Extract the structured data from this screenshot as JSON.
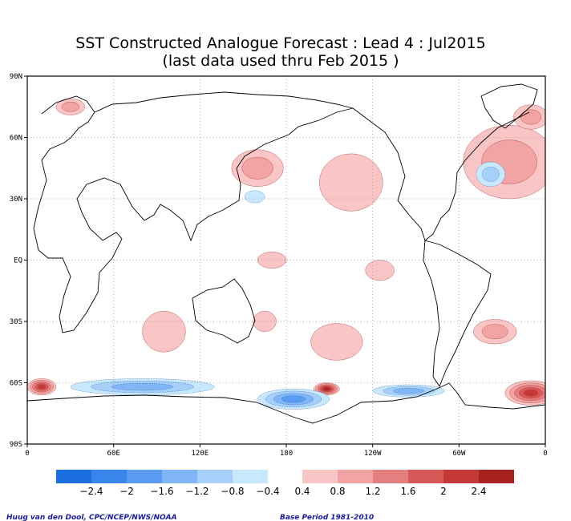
{
  "chart_data": {
    "type": "heatmap",
    "title": "SST Constructed Analogue Forecast : Lead 4 : Jul2015",
    "subtitle": "(last data used thru Feb 2015 )",
    "x_ticks": [
      "0",
      "60E",
      "120E",
      "180",
      "120W",
      "60W",
      "0"
    ],
    "y_ticks": [
      "90N",
      "60N",
      "30N",
      "EQ",
      "30S",
      "60S",
      "90S"
    ],
    "x_tick_values": [
      0,
      60,
      120,
      180,
      240,
      300,
      360
    ],
    "y_tick_values": [
      90,
      60,
      30,
      0,
      -30,
      -60,
      -90
    ],
    "xlim": [
      0,
      360
    ],
    "ylim": [
      -90,
      90
    ],
    "grid": true,
    "colorbar": {
      "negative_colors": [
        "#1c6fe0",
        "#3a85ec",
        "#5a9cf2",
        "#80b6f6",
        "#a6d0fa",
        "#c8e9fd"
      ],
      "positive_colors": [
        "#fac5c5",
        "#f2a3a3",
        "#e57f7f",
        "#d85858",
        "#c43838",
        "#a82222"
      ],
      "negative_labels": [
        "−2.4",
        "−2",
        "−1.6",
        "−1.2",
        "−0.8",
        "−0.4"
      ],
      "positive_labels": [
        "0.4",
        "0.8",
        "1.2",
        "1.6",
        "2",
        "2.4"
      ]
    },
    "anomalies": [
      {
        "name": "north-atlantic-warm",
        "lon": 335,
        "lat": 48,
        "rx": 32,
        "ry": 18,
        "level": 2
      },
      {
        "name": "north-atlantic-cold",
        "lon": 322,
        "lat": 42,
        "rx": 10,
        "ry": 6,
        "level": -2
      },
      {
        "name": "ne-pacific-warm",
        "lon": 225,
        "lat": 38,
        "rx": 22,
        "ry": 14,
        "level": 1
      },
      {
        "name": "nw-pacific-warm",
        "lon": 160,
        "lat": 45,
        "rx": 18,
        "ry": 9,
        "level": 2
      },
      {
        "name": "nw-pacific-cold",
        "lon": 158,
        "lat": 31,
        "rx": 7,
        "ry": 3,
        "level": -1
      },
      {
        "name": "arctic-warm-atlantic",
        "lon": 350,
        "lat": 70,
        "rx": 12,
        "ry": 6,
        "level": 2
      },
      {
        "name": "barents-warm",
        "lon": 30,
        "lat": 75,
        "rx": 10,
        "ry": 4,
        "level": 2
      },
      {
        "name": "east-pacific-warm",
        "lon": 245,
        "lat": -5,
        "rx": 10,
        "ry": 5,
        "level": 1
      },
      {
        "name": "central-pacific-warm",
        "lon": 170,
        "lat": 0,
        "rx": 10,
        "ry": 4,
        "level": 1
      },
      {
        "name": "south-pacific-warm",
        "lon": 215,
        "lat": -40,
        "rx": 18,
        "ry": 9,
        "level": 1
      },
      {
        "name": "south-indian-warm",
        "lon": 95,
        "lat": -35,
        "rx": 15,
        "ry": 10,
        "level": 1
      },
      {
        "name": "south-atlantic-warm",
        "lon": 325,
        "lat": -35,
        "rx": 15,
        "ry": 6,
        "level": 2
      },
      {
        "name": "tasman-warm",
        "lon": 165,
        "lat": -30,
        "rx": 8,
        "ry": 5,
        "level": 1
      },
      {
        "name": "southern-ocean-warm-pacific",
        "lon": 208,
        "lat": -63,
        "rx": 9,
        "ry": 3,
        "level": 6
      },
      {
        "name": "southern-ocean-warm-atlantic",
        "lon": 350,
        "lat": -65,
        "rx": 18,
        "ry": 6,
        "level": 5
      },
      {
        "name": "southern-ocean-warm-wedge",
        "lon": 10,
        "lat": -62,
        "rx": 10,
        "ry": 4,
        "level": 5
      },
      {
        "name": "southern-ocean-cold-indian",
        "lon": 80,
        "lat": -62,
        "rx": 50,
        "ry": 4,
        "level": -3
      },
      {
        "name": "southern-ocean-cold-ross",
        "lon": 185,
        "lat": -68,
        "rx": 25,
        "ry": 5,
        "level": -4
      },
      {
        "name": "southern-ocean-cold-pacific",
        "lon": 265,
        "lat": -64,
        "rx": 25,
        "ry": 3,
        "level": -3
      }
    ]
  },
  "credits": {
    "author": "Huug van den Dool, CPC/NCEP/NWS/NOAA",
    "base_period": "Base Period 1981-2010"
  }
}
